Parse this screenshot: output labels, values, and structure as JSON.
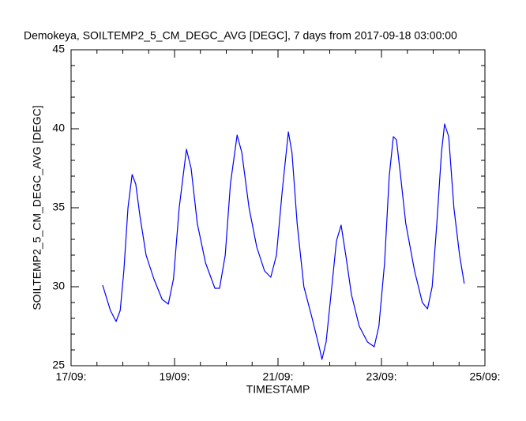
{
  "chart_data": {
    "type": "line",
    "title": "Demokeya, SOILTEMP2_5_CM_DEGC_AVG [DEGC], 7 days from  2017-09-18 03:00:00",
    "xlabel": "TIMESTAMP",
    "ylabel": "SOILTEMP2_5_CM_DEGC_AVG [DEGC]",
    "xlim": [
      0,
      8
    ],
    "xticks": [
      {
        "value": 0,
        "label": "17/09:"
      },
      {
        "value": 2,
        "label": "19/09:"
      },
      {
        "value": 4,
        "label": "21/09:"
      },
      {
        "value": 6,
        "label": "23/09:"
      },
      {
        "value": 8,
        "label": "25/09:"
      }
    ],
    "ylim": [
      25,
      45
    ],
    "yticks": [
      25,
      30,
      35,
      40,
      45
    ],
    "grid": false,
    "x": [
      0.61,
      0.76,
      0.87,
      0.95,
      1.02,
      1.1,
      1.18,
      1.25,
      1.33,
      1.45,
      1.6,
      1.76,
      1.88,
      1.98,
      2.09,
      2.23,
      2.32,
      2.44,
      2.6,
      2.78,
      2.87,
      2.98,
      3.08,
      3.21,
      3.3,
      3.44,
      3.59,
      3.74,
      3.86,
      3.97,
      4.08,
      4.2,
      4.27,
      4.37,
      4.5,
      4.66,
      4.81,
      4.85,
      4.93,
      5.04,
      5.13,
      5.22,
      5.31,
      5.42,
      5.57,
      5.73,
      5.86,
      5.95,
      6.06,
      6.15,
      6.23,
      6.29,
      6.37,
      6.47,
      6.64,
      6.79,
      6.89,
      6.98,
      7.07,
      7.16,
      7.22,
      7.3,
      7.4,
      7.51,
      7.6
    ],
    "series": [
      {
        "name": "SOILTEMP2_5_CM_DEGC_AVG",
        "color": "#0000ff",
        "values": [
          30.1,
          28.5,
          27.8,
          28.5,
          31,
          35,
          37.1,
          36.5,
          34.5,
          32,
          30.5,
          29.2,
          28.9,
          30.5,
          35,
          38.7,
          37.5,
          34,
          31.5,
          29.9,
          29.9,
          32,
          36.5,
          39.6,
          38.5,
          35,
          32.5,
          31,
          30.6,
          32,
          36,
          39.8,
          38.5,
          34,
          30,
          28,
          26,
          25.4,
          26.5,
          30,
          32.9,
          33.9,
          32,
          29.5,
          27.5,
          26.5,
          26.2,
          27.5,
          31.5,
          37,
          39.5,
          39.3,
          37,
          34,
          31,
          29,
          28.6,
          30,
          34,
          38.5,
          40.3,
          39.5,
          35,
          32,
          30.2
        ]
      }
    ]
  }
}
